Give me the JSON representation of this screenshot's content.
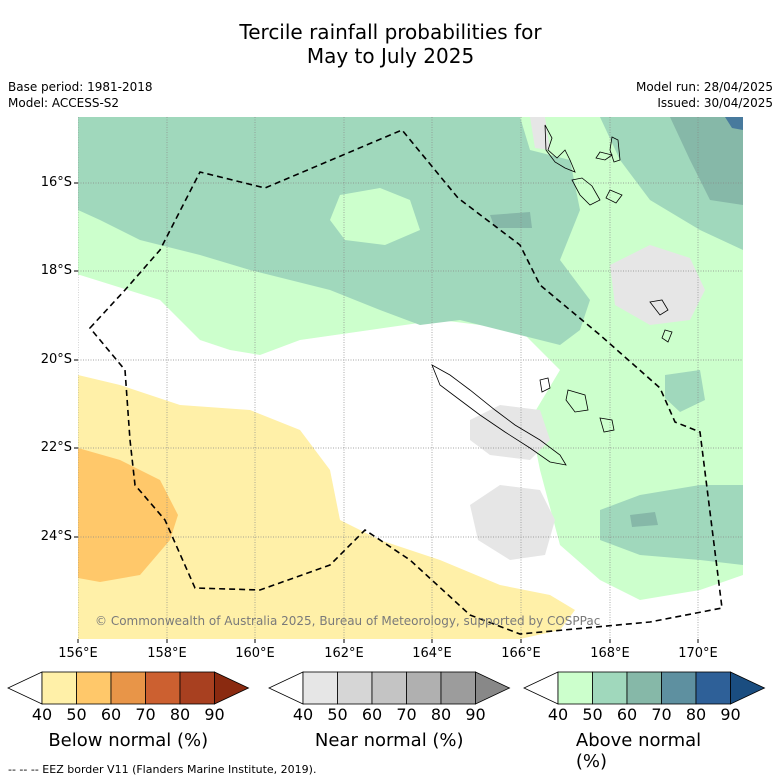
{
  "title_line1": "Tercile rainfall probabilities for",
  "title_line2": "May to July 2025",
  "base_period": "Base period: 1981-2018",
  "model": "Model: ACCESS-S2",
  "model_run": "Model run: 28/04/2025",
  "issued": "Issued: 30/04/2025",
  "copyright": "© Commonwealth of Australia 2025, Bureau of Meteorology, supported by COSPPac",
  "lat_labels": [
    "16°S",
    "18°S",
    "20°S",
    "22°S",
    "24°S"
  ],
  "lon_labels": [
    "156°E",
    "158°E",
    "160°E",
    "162°E",
    "164°E",
    "166°E",
    "168°E",
    "170°E"
  ],
  "colorbars": [
    {
      "title": "Below normal (%)",
      "ticks": [
        "40",
        "50",
        "60",
        "70",
        "80",
        "90"
      ],
      "colors": [
        "#fff0a8",
        "#ffc86a",
        "#e89548",
        "#cc6030",
        "#a84020",
        "#8a2a10"
      ]
    },
    {
      "title": "Near normal (%)",
      "ticks": [
        "40",
        "50",
        "60",
        "70",
        "80",
        "90"
      ],
      "colors": [
        "#e6e6e6",
        "#d6d6d6",
        "#c4c4c4",
        "#b0b0b0",
        "#9c9c9c",
        "#888888"
      ]
    },
    {
      "title": "Above normal (%)",
      "ticks": [
        "40",
        "50",
        "60",
        "70",
        "80",
        "90"
      ],
      "colors": [
        "#ccffcc",
        "#a0d8bc",
        "#86b8a8",
        "#5e90a0",
        "#2e6098",
        "#1a4d80"
      ]
    }
  ],
  "footer": "-- -- -- EEZ border V11 (Flanders Marine Institute, 2019)."
}
